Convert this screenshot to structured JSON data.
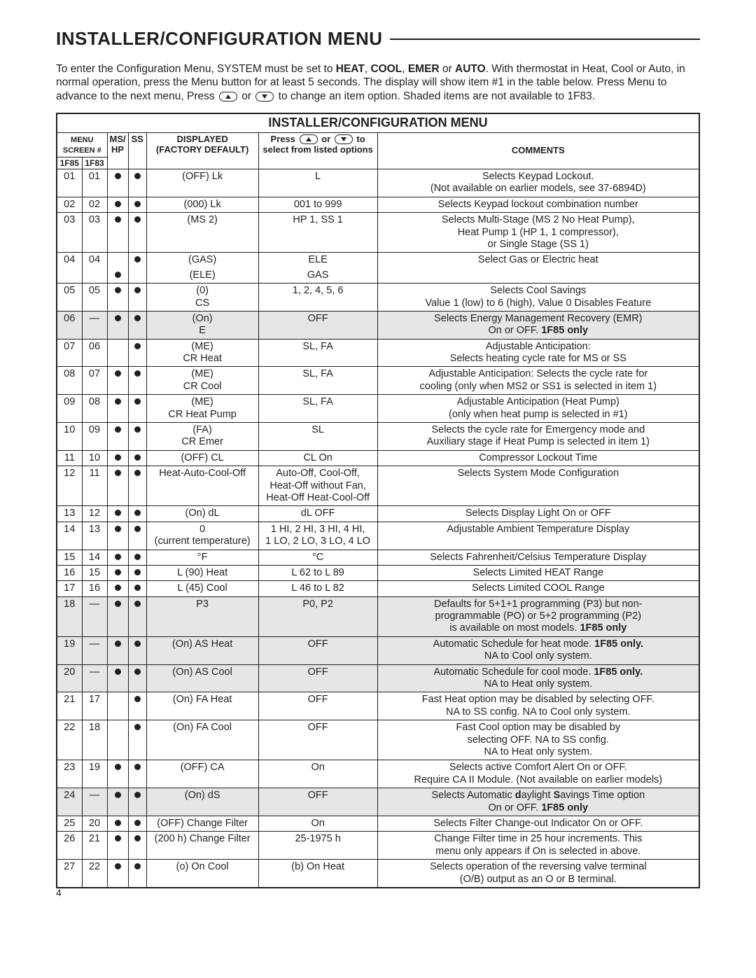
{
  "heading": "INSTALLER/CONFIGURATION MENU",
  "intro": {
    "pre": "To enter the Configuration Menu, SYSTEM must be set to ",
    "modes": [
      "HEAT",
      "COOL",
      "EMER",
      "AUTO"
    ],
    "post1": ". With thermostat in Heat, Cool or Auto, in normal operation, press the Menu button for at least 5 seconds. The display will show item #1 in the table below. Press Menu to advance to the next menu, Press ",
    "post2": " or ",
    "post3": " to change an item option. Shaded items are not available to 1F83."
  },
  "table": {
    "title": "INSTALLER/CONFIGURATION MENU",
    "headers": {
      "menu_screen": "MENU\nSCREEN #",
      "mshp": "MS/\nHP",
      "ss": "SS",
      "displayed": "DISPLAYED\n(FACTORY DEFAULT)",
      "options_pre": "Press ",
      "options_mid": " or ",
      "options_post": " to\nselect from listed options",
      "comments": "COMMENTS",
      "sub_1f85": "1F85",
      "sub_1f83": "1F83"
    },
    "rows": [
      {
        "s1": "01",
        "s2": "01",
        "hp": true,
        "ss": true,
        "disp": "(OFF) Lk",
        "opt": "L",
        "com": "Selects Keypad Lockout.\n(Not available on earlier models, see 37-6894D)",
        "shade": false
      },
      {
        "s1": "02",
        "s2": "02",
        "hp": true,
        "ss": true,
        "disp": "(000) Lk",
        "opt": "001  to 999",
        "com": "Selects Keypad lockout combination number",
        "shade": false
      },
      {
        "s1": "03",
        "s2": "03",
        "hp": true,
        "ss": true,
        "disp": "(MS 2)",
        "opt": "HP 1, SS 1",
        "com": "Selects Multi-Stage (MS 2 No Heat Pump),\nHeat Pump 1 (HP 1, 1 compressor),\nor Single Stage (SS 1)",
        "shade": false
      },
      {
        "s1": "04",
        "s2": "04",
        "hp": false,
        "ss": true,
        "disp": "(GAS)",
        "opt": "ELE",
        "com": "Select Gas or Electric heat",
        "shade": false,
        "extra": {
          "hp": true,
          "ss": false,
          "disp": "(ELE)",
          "opt": "GAS",
          "com": ""
        }
      },
      {
        "s1": "05",
        "s2": "05",
        "hp": true,
        "ss": true,
        "disp": "(0)\nCS",
        "opt": "1, 2, 4, 5, 6",
        "com": "Selects Cool Savings\nValue 1 (low) to 6 (high), Value 0 Disables Feature",
        "shade": false
      },
      {
        "s1": "06",
        "s2": "—",
        "hp": true,
        "ss": true,
        "disp": "(On)\nE",
        "opt": "OFF",
        "com": "Selects Energy Management Recovery (EMR)\nOn or OFF. <b>1F85 only</b>",
        "shade": true
      },
      {
        "s1": "07",
        "s2": "06",
        "hp": false,
        "ss": true,
        "disp": "(ME)\nCR Heat",
        "opt": "SL, FA",
        "com": "Adjustable Anticipation:\nSelects heating cycle rate for MS or SS",
        "shade": false
      },
      {
        "s1": "08",
        "s2": "07",
        "hp": true,
        "ss": true,
        "disp": "(ME)\nCR Cool",
        "opt": "SL, FA",
        "com": "Adjustable Anticipation: Selects the cycle rate for\ncooling (only when MS2 or SS1 is selected in item 1)",
        "shade": false
      },
      {
        "s1": "09",
        "s2": "08",
        "hp": true,
        "ss": true,
        "disp": "(ME)\nCR Heat Pump",
        "opt": "SL, FA",
        "com": "Adjustable Anticipation (Heat Pump)\n(only when heat pump is selected in #1)",
        "shade": false
      },
      {
        "s1": "10",
        "s2": "09",
        "hp": true,
        "ss": true,
        "disp": "(FA)\nCR Emer",
        "opt": "SL",
        "com": "Selects the cycle rate for Emergency mode and\nAuxiliary stage if Heat Pump is selected in item 1)",
        "shade": false
      },
      {
        "s1": "11",
        "s2": "10",
        "hp": true,
        "ss": true,
        "disp": "(OFF) CL",
        "opt": "CL On",
        "com": "Compressor Lockout Time",
        "shade": false
      },
      {
        "s1": "12",
        "s2": "11",
        "hp": true,
        "ss": true,
        "disp": "Heat-Auto-Cool-Off",
        "opt": "Auto-Off, Cool-Off,\nHeat-Off without Fan,\nHeat-Off Heat-Cool-Off",
        "com": "Selects System Mode Configuration",
        "shade": false
      },
      {
        "s1": "13",
        "s2": "12",
        "hp": true,
        "ss": true,
        "disp": "(On) dL",
        "opt": "dL OFF",
        "com": "Selects Display Light On or OFF",
        "shade": false
      },
      {
        "s1": "14",
        "s2": "13",
        "hp": true,
        "ss": true,
        "disp": "0\n(current temperature)",
        "opt": "1 HI, 2 HI, 3 HI, 4 HI,\n1 LO, 2 LO, 3 LO, 4 LO",
        "com": "Adjustable Ambient Temperature Display",
        "shade": false
      },
      {
        "s1": "15",
        "s2": "14",
        "hp": true,
        "ss": true,
        "disp": "°F",
        "opt": "°C",
        "com": "Selects Fahrenheit/Celsius Temperature Display",
        "shade": false
      },
      {
        "s1": "16",
        "s2": "15",
        "hp": true,
        "ss": true,
        "disp": "L (90) Heat",
        "opt": "L 62 to L 89",
        "com": "Selects Limited HEAT Range",
        "shade": false
      },
      {
        "s1": "17",
        "s2": "16",
        "hp": true,
        "ss": true,
        "disp": "L (45) Cool",
        "opt": "L 46 to L 82",
        "com": "Selects Limited COOL Range",
        "shade": false
      },
      {
        "s1": "18",
        "s2": "—",
        "hp": true,
        "ss": true,
        "disp": "P3",
        "opt": "P0, P2",
        "com": "Defaults for 5+1+1 programming (P3) but non-\nprogrammable (PO) or 5+2 programming (P2)\nis available on most models. <b>1F85 only</b>",
        "shade": true
      },
      {
        "s1": "19",
        "s2": "—",
        "hp": true,
        "ss": true,
        "disp": "(On) AS Heat",
        "opt": "OFF",
        "com": "Automatic Schedule for heat mode. <b>1F85 only.</b>\nNA to Cool only system.",
        "shade": true
      },
      {
        "s1": "20",
        "s2": "—",
        "hp": true,
        "ss": true,
        "disp": "(On) AS Cool",
        "opt": "OFF",
        "com": "Automatic Schedule for cool mode. <b>1F85 only.</b>\nNA to Heat only system.",
        "shade": true
      },
      {
        "s1": "21",
        "s2": "17",
        "hp": false,
        "ss": true,
        "disp": "(On) FA Heat",
        "opt": "OFF",
        "com": "Fast Heat option may be disabled by selecting OFF.\nNA to SS config. NA to Cool only system.",
        "shade": false
      },
      {
        "s1": "22",
        "s2": "18",
        "hp": false,
        "ss": true,
        "disp": "(On) FA Cool",
        "opt": "OFF",
        "com": "Fast Cool option may be disabled by\nselecting OFF. NA to SS config.\nNA to Heat only system.",
        "shade": false
      },
      {
        "s1": "23",
        "s2": "19",
        "hp": true,
        "ss": true,
        "disp": "(OFF) CA",
        "opt": "On",
        "com": "Selects active Comfort Alert On or OFF.\nRequire CA II Module. (Not available on earlier models)",
        "shade": false
      },
      {
        "s1": "24",
        "s2": "—",
        "hp": true,
        "ss": true,
        "disp": "(On) dS",
        "opt": "OFF",
        "com": "Selects Automatic <b>d</b>aylight <b>S</b>avings Time option\nOn or OFF. <b>1F85 only</b>",
        "shade": true
      },
      {
        "s1": "25",
        "s2": "20",
        "hp": true,
        "ss": true,
        "disp": "(OFF) Change Filter",
        "opt": "On",
        "com": "Selects Filter Change-out Indicator On or OFF.",
        "shade": false
      },
      {
        "s1": "26",
        "s2": "21",
        "hp": true,
        "ss": true,
        "disp": "(200 h) Change Filter",
        "opt": "25-1975 h",
        "com": "Change Filter time in 25 hour increments. This\nmenu only appears if On is selected in above.",
        "shade": false
      },
      {
        "s1": "27",
        "s2": "22",
        "hp": true,
        "ss": true,
        "disp": "(o) On Cool",
        "opt": "(b) On Heat",
        "com": "Selects operation of the reversing valve terminal\n(O/B) output as an O or B terminal.",
        "shade": false
      }
    ]
  },
  "page_number": "4",
  "colors": {
    "text": "#231f20",
    "shade": "#e6e6e6",
    "bg": "#ffffff"
  }
}
